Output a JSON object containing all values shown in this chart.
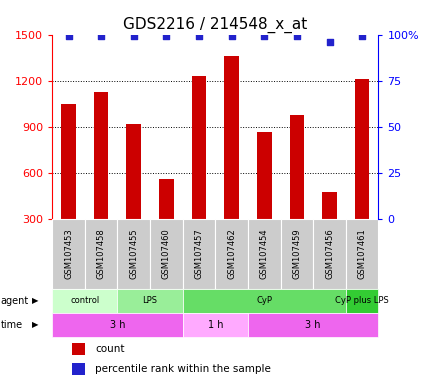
{
  "title": "GDS2216 / 214548_x_at",
  "samples": [
    "GSM107453",
    "GSM107458",
    "GSM107455",
    "GSM107460",
    "GSM107457",
    "GSM107462",
    "GSM107454",
    "GSM107459",
    "GSM107456",
    "GSM107461"
  ],
  "counts": [
    1050,
    1130,
    920,
    565,
    1230,
    1360,
    870,
    980,
    480,
    1210
  ],
  "percentile_ranks": [
    99,
    99,
    99,
    99,
    99,
    99,
    99,
    99,
    96,
    99
  ],
  "ylim_left": [
    300,
    1500
  ],
  "ylim_right": [
    0,
    100
  ],
  "yticks_left": [
    300,
    600,
    900,
    1200,
    1500
  ],
  "yticks_right": [
    0,
    25,
    50,
    75,
    100
  ],
  "bar_color": "#cc0000",
  "dot_color": "#2222cc",
  "agent_groups": [
    {
      "label": "control",
      "start": 0,
      "end": 2,
      "color": "#ccffcc"
    },
    {
      "label": "LPS",
      "start": 2,
      "end": 4,
      "color": "#99ee99"
    },
    {
      "label": "CyP",
      "start": 4,
      "end": 9,
      "color": "#66dd66"
    },
    {
      "label": "CyP plus LPS",
      "start": 9,
      "end": 10,
      "color": "#33cc33"
    }
  ],
  "time_groups": [
    {
      "label": "3 h",
      "start": 0,
      "end": 4,
      "color": "#ee66ee"
    },
    {
      "label": "1 h",
      "start": 4,
      "end": 6,
      "color": "#ffaaff"
    },
    {
      "label": "3 h",
      "start": 6,
      "end": 10,
      "color": "#ee66ee"
    }
  ],
  "grid_lines": [
    600,
    900,
    1200
  ],
  "label_fontsize": 7,
  "bar_width": 0.45
}
